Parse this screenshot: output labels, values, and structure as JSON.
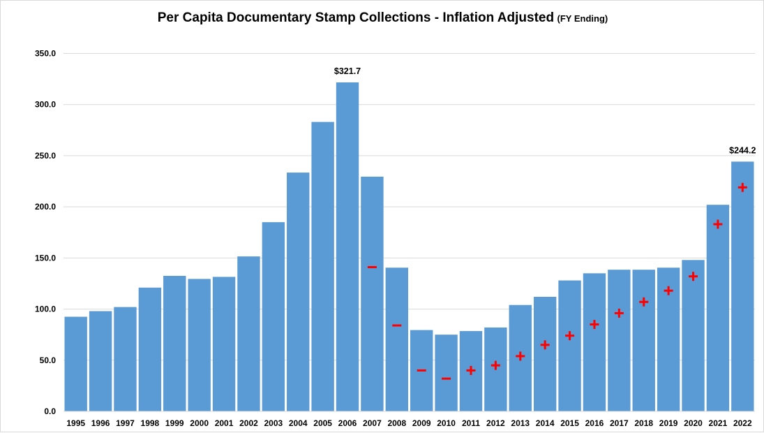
{
  "chart_data": {
    "type": "bar",
    "title": "Per Capita Documentary Stamp Collections - Inflation Adjusted",
    "subtitle": "(FY Ending)",
    "xlabel": "",
    "ylabel": "",
    "ylim": [
      0,
      350
    ],
    "yticks": [
      "0.0",
      "50.0",
      "100.0",
      "150.0",
      "200.0",
      "250.0",
      "300.0",
      "350.0"
    ],
    "ytick_values": [
      0,
      50,
      100,
      150,
      200,
      250,
      300,
      350
    ],
    "grid": true,
    "legend": "none",
    "categories": [
      "1995",
      "1996",
      "1997",
      "1998",
      "1999",
      "2000",
      "2001",
      "2002",
      "2003",
      "2004",
      "2005",
      "2006",
      "2007",
      "2008",
      "2009",
      "2010",
      "2011",
      "2012",
      "2013",
      "2014",
      "2015",
      "2016",
      "2017",
      "2018",
      "2019",
      "2020",
      "2021",
      "2022"
    ],
    "series": [
      {
        "name": "Per Capita Documentary Stamp Collections",
        "values": [
          92.5,
          98.0,
          102.0,
          121.0,
          132.5,
          129.5,
          131.5,
          151.5,
          185.0,
          233.5,
          283.0,
          321.7,
          229.5,
          140.5,
          79.5,
          75.0,
          78.5,
          82.0,
          104.0,
          112.0,
          128.0,
          135.0,
          138.5,
          138.5,
          140.5,
          148.0,
          202.0,
          244.2
        ]
      }
    ],
    "bar_color": "#5b9bd5",
    "data_labels": [
      {
        "category": "2006",
        "text": "$321.7"
      },
      {
        "category": "2022",
        "text": "$244.2"
      }
    ],
    "markers": [
      {
        "category": "2007",
        "symbol": "minus",
        "y": 141
      },
      {
        "category": "2008",
        "symbol": "minus",
        "y": 84
      },
      {
        "category": "2009",
        "symbol": "minus",
        "y": 40
      },
      {
        "category": "2010",
        "symbol": "minus",
        "y": 32
      },
      {
        "category": "2011",
        "symbol": "plus",
        "y": 40
      },
      {
        "category": "2012",
        "symbol": "plus",
        "y": 45
      },
      {
        "category": "2013",
        "symbol": "plus",
        "y": 54
      },
      {
        "category": "2014",
        "symbol": "plus",
        "y": 65
      },
      {
        "category": "2015",
        "symbol": "plus",
        "y": 74
      },
      {
        "category": "2016",
        "symbol": "plus",
        "y": 85
      },
      {
        "category": "2017",
        "symbol": "plus",
        "y": 96
      },
      {
        "category": "2018",
        "symbol": "plus",
        "y": 107
      },
      {
        "category": "2019",
        "symbol": "plus",
        "y": 118
      },
      {
        "category": "2020",
        "symbol": "plus",
        "y": 132
      },
      {
        "category": "2021",
        "symbol": "plus",
        "y": 183
      },
      {
        "category": "2022",
        "symbol": "plus",
        "y": 219
      }
    ],
    "marker_color": "#ff0000",
    "gridline_color": "#d9d9d9"
  }
}
